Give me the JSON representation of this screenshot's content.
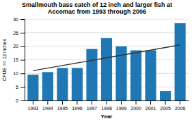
{
  "chart_data": {
    "type": "bar",
    "title": "Smallmouth bass catch of 12 inch and larger fish at\nAccomac from 1993 through 2006",
    "xlabel": "Year",
    "ylabel": "CPUE >= 12 inches",
    "categories": [
      "1993",
      "1994",
      "1995",
      "1996",
      "1997",
      "1998",
      "1999",
      "2000",
      "2001",
      "2005",
      "2006"
    ],
    "series": [
      {
        "type": "bar",
        "values": [
          9.5,
          10.5,
          12.0,
          12.0,
          19.0,
          23.0,
          20.0,
          18.5,
          18.5,
          3.5,
          28.5
        ]
      },
      {
        "type": "line",
        "x": [
          "1993",
          "2006"
        ],
        "values": [
          11.0,
          20.5
        ]
      }
    ],
    "ylim": [
      0,
      30
    ],
    "yticks": [
      0,
      5,
      10,
      15,
      20,
      25,
      30
    ],
    "grid": true
  }
}
